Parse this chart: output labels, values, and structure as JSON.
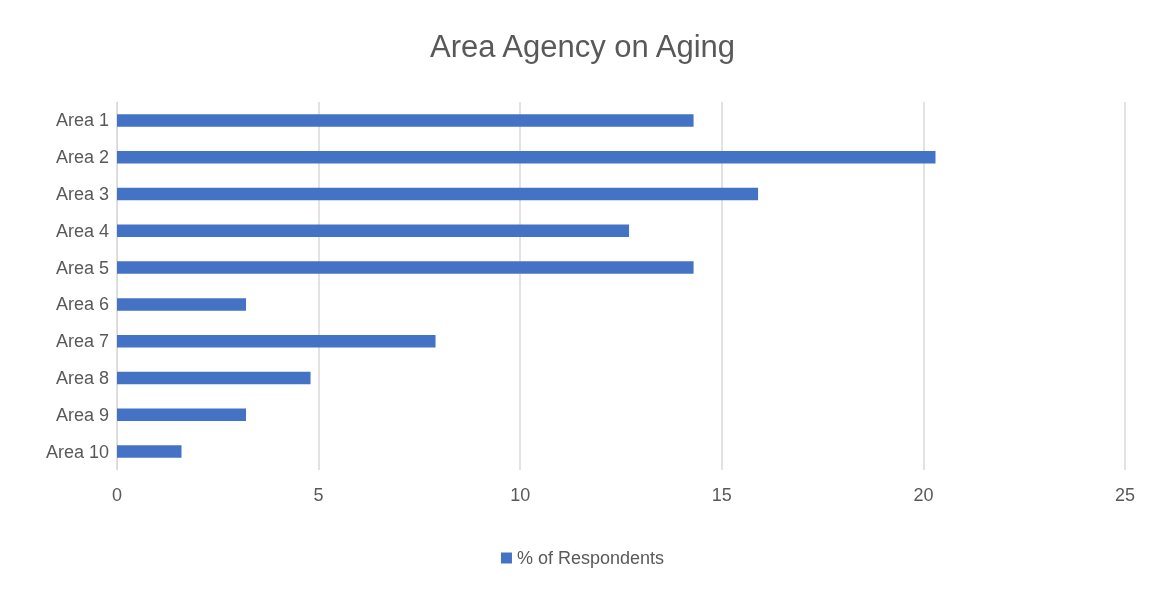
{
  "chart_data": {
    "type": "bar",
    "title": "Area Agency on Aging",
    "orientation": "horizontal",
    "categories": [
      "Area 1",
      "Area 2",
      "Area 3",
      "Area 4",
      "Area 5",
      "Area 6",
      "Area 7",
      "Area 8",
      "Area 9",
      "Area 10"
    ],
    "series": [
      {
        "name": "% of Respondents",
        "color": "#4472c4",
        "values": [
          14.3,
          20.3,
          15.9,
          12.7,
          14.3,
          3.2,
          7.9,
          4.8,
          3.2,
          1.6
        ]
      }
    ],
    "xlim": [
      0,
      25
    ],
    "xticks": [
      0,
      5,
      10,
      15,
      20,
      25
    ],
    "grid": "x",
    "legend": "bottom"
  }
}
